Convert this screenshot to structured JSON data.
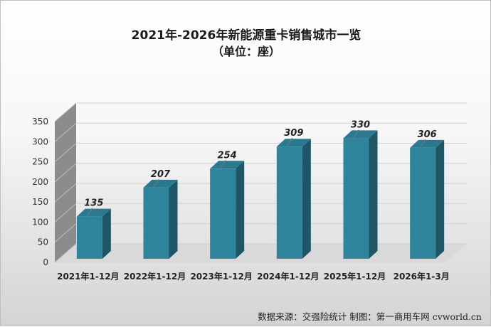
{
  "chart_data": {
    "type": "bar",
    "title": "2021年-2026年新能源重卡销售城市一览",
    "subtitle": "（单位：座）",
    "categories": [
      "2021年1-12月",
      "2022年1-12月",
      "2023年1-12月",
      "2024年1-12月",
      "2025年1-12月",
      "2026年1-3月"
    ],
    "values": [
      135,
      207,
      254,
      309,
      330,
      306
    ],
    "ylim": [
      0,
      350
    ],
    "yticks": [
      0,
      50,
      100,
      150,
      200,
      250,
      300,
      350
    ],
    "grid": true,
    "legend": "none",
    "bar_color": "#2e849a"
  },
  "source": "数据来源：交强险统计 制图：第一商用车网 cvworld.cn"
}
